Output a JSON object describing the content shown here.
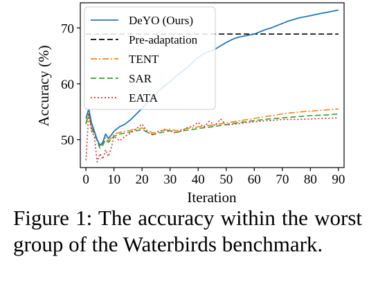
{
  "chart_data": {
    "type": "line",
    "xlabel": "Iteration",
    "ylabel": "Accuracy (%)",
    "xlim": [
      -2,
      92
    ],
    "ylim": [
      45,
      74.5
    ],
    "xticks": [
      0,
      10,
      20,
      30,
      40,
      50,
      60,
      70,
      80,
      90
    ],
    "yticks": [
      50,
      60,
      70
    ],
    "grid": false,
    "legend_position": "top-left",
    "series": [
      {
        "name": "DeYO (Ours)",
        "color": "#1f77b4",
        "style": "solid",
        "x": [
          0,
          1,
          2,
          3,
          4,
          5,
          6,
          7,
          8,
          9,
          10,
          12,
          14,
          16,
          18,
          20,
          22,
          24,
          26,
          28,
          30,
          32,
          34,
          36,
          38,
          40,
          42,
          44,
          46,
          48,
          50,
          52,
          54,
          56,
          58,
          60,
          62,
          64,
          66,
          68,
          70,
          72,
          74,
          76,
          78,
          80,
          82,
          84,
          86,
          88,
          90
        ],
        "y": [
          53.8,
          55.5,
          53.0,
          51.5,
          50.0,
          49.0,
          49.5,
          51.0,
          50.2,
          50.8,
          51.5,
          52.3,
          52.8,
          53.6,
          54.6,
          55.6,
          56.6,
          57.6,
          58.7,
          59.6,
          60.4,
          61.3,
          62.1,
          62.9,
          63.8,
          64.7,
          65.4,
          65.8,
          66.2,
          66.8,
          67.4,
          67.9,
          68.3,
          68.5,
          68.7,
          68.9,
          69.3,
          69.7,
          70.0,
          70.4,
          70.8,
          71.2,
          71.5,
          71.8,
          72.0,
          72.2,
          72.4,
          72.6,
          72.8,
          73.0,
          73.2
        ]
      },
      {
        "name": "Pre-adaptation",
        "color": "#000000",
        "style": "dashed",
        "x": [
          0,
          90
        ],
        "y": [
          68.9,
          68.9
        ]
      },
      {
        "name": "TENT",
        "color": "#ff7f0e",
        "style": "dashdot",
        "x": [
          0,
          1,
          2,
          3,
          4,
          5,
          6,
          7,
          8,
          9,
          10,
          12,
          14,
          16,
          18,
          20,
          22,
          24,
          26,
          28,
          30,
          32,
          34,
          36,
          38,
          40,
          45,
          50,
          55,
          60,
          65,
          70,
          75,
          80,
          85,
          90
        ],
        "y": [
          53.0,
          54.8,
          52.3,
          51.3,
          50.0,
          48.8,
          49.3,
          50.3,
          49.8,
          50.3,
          50.9,
          51.3,
          51.5,
          51.7,
          51.9,
          52.1,
          51.6,
          51.2,
          51.5,
          51.7,
          51.9,
          51.6,
          51.8,
          52.0,
          52.1,
          52.3,
          52.6,
          53.0,
          53.4,
          53.8,
          54.2,
          54.6,
          54.9,
          55.1,
          55.3,
          55.5
        ]
      },
      {
        "name": "SAR",
        "color": "#2ca02c",
        "style": "dashed",
        "x": [
          0,
          1,
          2,
          3,
          4,
          5,
          6,
          7,
          8,
          9,
          10,
          12,
          14,
          16,
          18,
          20,
          22,
          24,
          26,
          28,
          30,
          32,
          34,
          36,
          38,
          40,
          45,
          50,
          55,
          60,
          65,
          70,
          75,
          80,
          85,
          90
        ],
        "y": [
          52.8,
          54.6,
          52.0,
          51.0,
          49.8,
          48.5,
          49.0,
          50.0,
          49.5,
          50.0,
          50.6,
          51.0,
          51.2,
          51.4,
          51.6,
          51.8,
          51.3,
          50.9,
          51.2,
          51.4,
          51.6,
          51.3,
          51.5,
          51.7,
          51.8,
          52.0,
          52.3,
          52.7,
          53.1,
          53.4,
          53.7,
          53.9,
          54.1,
          54.3,
          54.4,
          54.6
        ]
      },
      {
        "name": "EATA",
        "color": "#d62728",
        "style": "dotted",
        "x": [
          0,
          1,
          2,
          3,
          4,
          5,
          6,
          7,
          8,
          9,
          10,
          12,
          14,
          16,
          18,
          20,
          22,
          24,
          26,
          28,
          30,
          32,
          34,
          36,
          38,
          40,
          42,
          44,
          46,
          48,
          50,
          55,
          60,
          65,
          70,
          75,
          80,
          85,
          90
        ],
        "y": [
          46.3,
          54.8,
          51.5,
          50.5,
          46.0,
          47.5,
          46.5,
          48.2,
          47.0,
          48.5,
          50.6,
          49.8,
          50.6,
          51.2,
          52.0,
          52.8,
          51.3,
          50.8,
          51.5,
          51.8,
          51.6,
          51.2,
          51.6,
          52.1,
          52.4,
          53.1,
          52.2,
          53.3,
          52.5,
          53.7,
          52.6,
          52.9,
          53.2,
          53.4,
          53.6,
          53.6,
          53.7,
          53.8,
          53.9
        ]
      }
    ]
  },
  "caption": "Figure 1: The accuracy within the worst group of the Waterbirds benchmark."
}
